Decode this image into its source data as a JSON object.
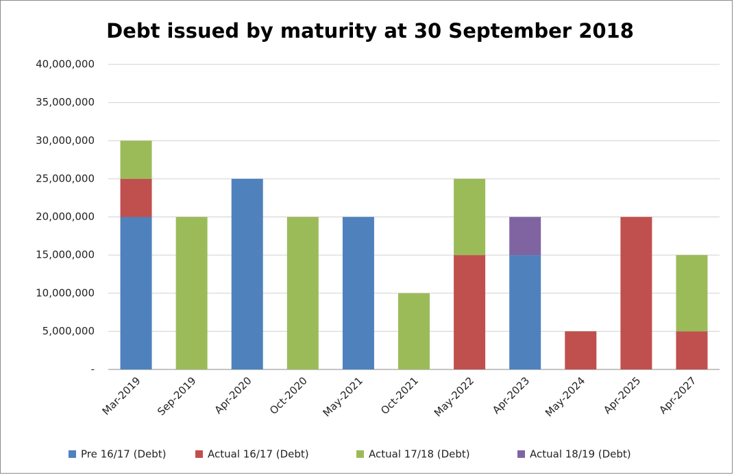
{
  "chart_data": {
    "type": "stacked_bar",
    "title": "Debt issued by maturity at 30 September 2018",
    "categories": [
      "Mar-2019",
      "Sep-2019",
      "Apr-2020",
      "Oct-2020",
      "May-2021",
      "Oct-2021",
      "May-2022",
      "Apr-2023",
      "May-2024",
      "Apr-2025",
      "Apr-2027"
    ],
    "series": [
      {
        "name": "Pre 16/17 (Debt)",
        "color": "#4f81bd",
        "values": [
          20000000,
          null,
          25000000,
          null,
          20000000,
          null,
          null,
          15000000,
          null,
          null,
          null
        ]
      },
      {
        "name": "Actual 16/17 (Debt)",
        "color": "#c0504d",
        "values": [
          5000000,
          null,
          null,
          null,
          null,
          null,
          15000000,
          null,
          5000000,
          20000000,
          5000000
        ]
      },
      {
        "name": "Actual 17/18 (Debt)",
        "color": "#9bbb59",
        "values": [
          5000000,
          20000000,
          null,
          20000000,
          null,
          10000000,
          10000000,
          null,
          null,
          null,
          10000000
        ]
      },
      {
        "name": "Actual 18/19 (Debt)",
        "color": "#8064a2",
        "values": [
          null,
          null,
          null,
          null,
          null,
          null,
          null,
          5000000,
          null,
          null,
          null
        ]
      }
    ],
    "ylim": [
      0,
      40000000
    ],
    "yticks": [
      {
        "value": 0,
        "label": "-"
      },
      {
        "value": 5000000,
        "label": "5,000,000"
      },
      {
        "value": 10000000,
        "label": "10,000,000"
      },
      {
        "value": 15000000,
        "label": "15,000,000"
      },
      {
        "value": 20000000,
        "label": "20,000,000"
      },
      {
        "value": 25000000,
        "label": "25,000,000"
      },
      {
        "value": 30000000,
        "label": "30,000,000"
      },
      {
        "value": 35000000,
        "label": "35,000,000"
      },
      {
        "value": 40000000,
        "label": "40,000,000"
      }
    ],
    "grid": true,
    "legend": "bottom"
  }
}
